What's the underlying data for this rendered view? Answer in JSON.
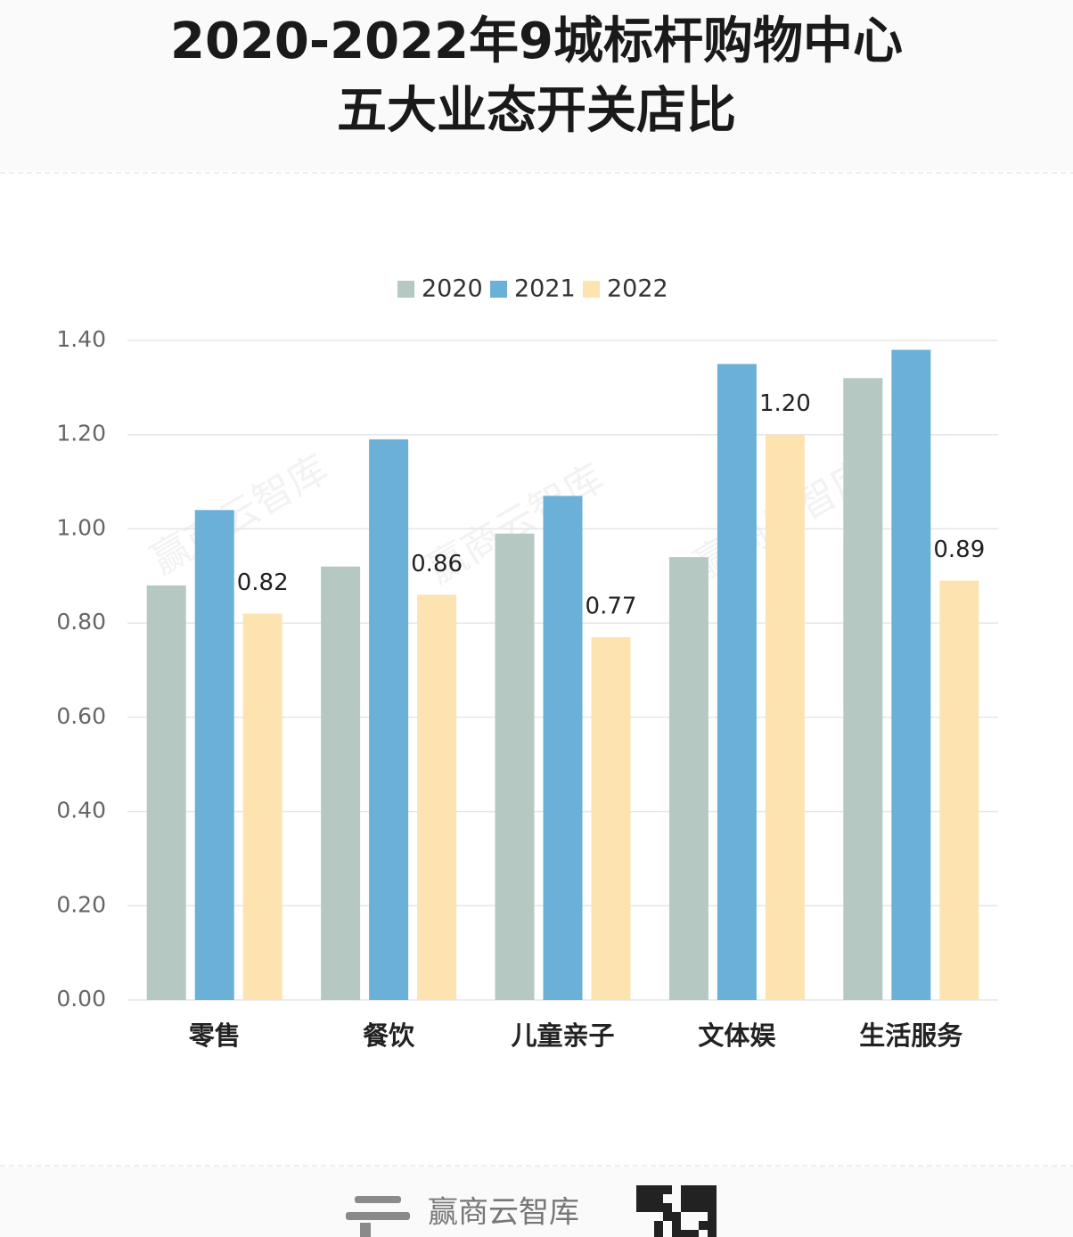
{
  "chart_data": {
    "type": "bar",
    "title": [
      "2020-2022年9城标杆购物中心",
      "五大业态开关店比"
    ],
    "categories": [
      "零售",
      "餐饮",
      "儿童亲子",
      "文体娱",
      "生活服务"
    ],
    "series": [
      {
        "name": "2020",
        "color": "#b5c9c2",
        "values": [
          0.88,
          0.92,
          0.99,
          0.94,
          1.32
        ]
      },
      {
        "name": "2021",
        "color": "#6bb0d6",
        "values": [
          1.04,
          1.19,
          1.07,
          1.35,
          1.38
        ]
      },
      {
        "name": "2022",
        "color": "#fde3b0",
        "values": [
          0.82,
          0.86,
          0.77,
          1.2,
          0.89
        ],
        "value_labels": [
          "0.82",
          "0.86",
          "0.77",
          "1.20",
          "0.89"
        ]
      }
    ],
    "ylim": [
      0,
      1.4
    ],
    "yticks": [
      {
        "value": 0,
        "label": "0.00"
      },
      {
        "value": 0.2,
        "label": "0.20"
      },
      {
        "value": 0.4,
        "label": "0.40"
      },
      {
        "value": 0.6,
        "label": "0.60"
      },
      {
        "value": 0.8,
        "label": "0.80"
      },
      {
        "value": 1,
        "label": "1.00"
      },
      {
        "value": 1.2,
        "label": "1.20"
      },
      {
        "value": 1.4,
        "label": "1.40"
      }
    ],
    "grid": true,
    "legend": "top"
  },
  "watermark": "赢商云智库",
  "footer": {
    "brand": "赢商云智库"
  }
}
